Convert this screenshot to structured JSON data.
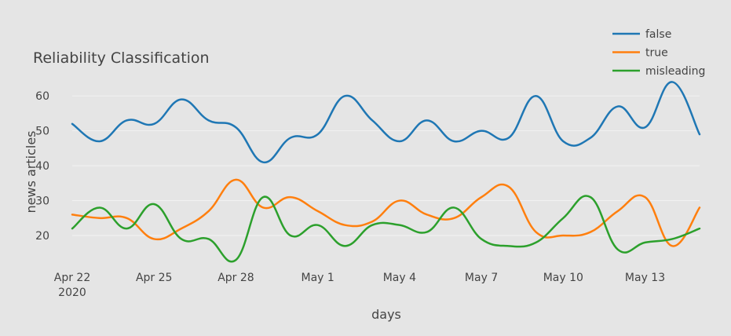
{
  "chart_data": {
    "type": "line",
    "title": "Reliability Classification",
    "xlabel": "days",
    "ylabel": "news articles",
    "x": [
      "2020-04-22",
      "2020-04-23",
      "2020-04-24",
      "2020-04-25",
      "2020-04-26",
      "2020-04-27",
      "2020-04-28",
      "2020-04-29",
      "2020-04-30",
      "2020-05-01",
      "2020-05-02",
      "2020-05-03",
      "2020-05-04",
      "2020-05-05",
      "2020-05-06",
      "2020-05-07",
      "2020-05-08",
      "2020-05-09",
      "2020-05-10",
      "2020-05-11",
      "2020-05-12",
      "2020-05-13",
      "2020-05-14",
      "2020-05-15"
    ],
    "x_ticks": [
      {
        "date": "2020-04-22",
        "label": "Apr 22",
        "sublabel": "2020"
      },
      {
        "date": "2020-04-25",
        "label": "Apr 25",
        "sublabel": ""
      },
      {
        "date": "2020-04-28",
        "label": "Apr 28",
        "sublabel": ""
      },
      {
        "date": "2020-05-01",
        "label": "May 1",
        "sublabel": ""
      },
      {
        "date": "2020-05-04",
        "label": "May 4",
        "sublabel": ""
      },
      {
        "date": "2020-05-07",
        "label": "May 7",
        "sublabel": ""
      },
      {
        "date": "2020-05-10",
        "label": "May 10",
        "sublabel": ""
      },
      {
        "date": "2020-05-13",
        "label": "May 13",
        "sublabel": ""
      }
    ],
    "y_ticks": [
      20,
      30,
      40,
      50,
      60
    ],
    "ylim": [
      11,
      65
    ],
    "grid": true,
    "legend_position": "top-right",
    "series": [
      {
        "name": "false",
        "color": "#1f77b4",
        "values": [
          52,
          47,
          53,
          52,
          59,
          53,
          51,
          41,
          48,
          49,
          60,
          53,
          47,
          53,
          47,
          50,
          48,
          60,
          47,
          48,
          57,
          51,
          64,
          49
        ]
      },
      {
        "name": "true",
        "color": "#ff7f0e",
        "values": [
          26,
          25,
          25,
          19,
          22,
          27,
          36,
          28,
          31,
          27,
          23,
          24,
          30,
          26,
          25,
          31,
          34,
          21,
          20,
          21,
          27,
          31,
          17,
          28
        ]
      },
      {
        "name": "misleading",
        "color": "#2ca02c",
        "values": [
          22,
          28,
          22,
          29,
          19,
          19,
          13,
          31,
          20,
          23,
          17,
          23,
          23,
          21,
          28,
          19,
          17,
          18,
          25,
          31,
          16,
          18,
          19,
          22
        ]
      }
    ]
  }
}
